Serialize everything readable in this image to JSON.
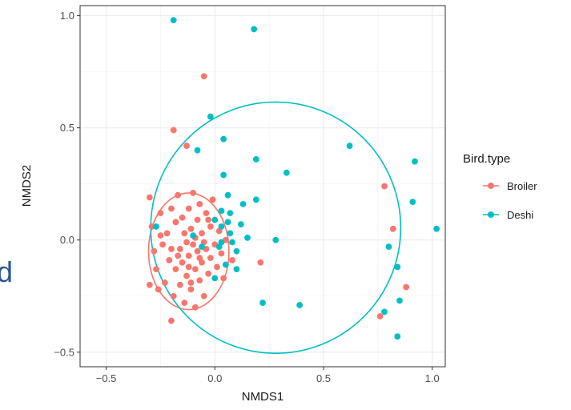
{
  "edge_fragment": "d",
  "chart_data": {
    "type": "scatter",
    "title": "",
    "xlabel": "NMDS1",
    "ylabel": "NMDS2",
    "xlim": [
      -0.62,
      1.06
    ],
    "ylim": [
      -0.565,
      1.045
    ],
    "x_ticks": [
      -0.5,
      0.0,
      0.5,
      1.0
    ],
    "x_tick_labels": [
      "−0.5",
      "0.0",
      "0.5",
      "1.0"
    ],
    "y_ticks": [
      -0.5,
      0.0,
      0.5,
      1.0
    ],
    "y_tick_labels": [
      "−0.5",
      "0.0",
      "0.5",
      "1.0"
    ],
    "grid": true,
    "legend": {
      "title": "Bird.type",
      "position": "right"
    },
    "series": [
      {
        "name": "Broiler",
        "color": "#F8766D",
        "ellipse": {
          "cx": -0.12,
          "cy": -0.05,
          "rx": 0.185,
          "ry": 0.26
        },
        "points": [
          [
            -0.05,
            0.73
          ],
          [
            -0.19,
            0.49
          ],
          [
            -0.13,
            0.42
          ],
          [
            0.78,
            0.24
          ],
          [
            0.82,
            0.05
          ],
          [
            0.88,
            -0.21
          ],
          [
            0.76,
            -0.34
          ],
          [
            -0.2,
            -0.36
          ],
          [
            -0.3,
            0.19
          ],
          [
            -0.29,
            0.06
          ],
          [
            -0.28,
            -0.05
          ],
          [
            -0.3,
            -0.2
          ],
          [
            -0.27,
            -0.13
          ],
          [
            -0.25,
            0.12
          ],
          [
            -0.24,
            -0.02
          ],
          [
            -0.23,
            -0.19
          ],
          [
            -0.22,
            0.03
          ],
          [
            -0.21,
            -0.09
          ],
          [
            -0.2,
            0.14
          ],
          [
            -0.19,
            -0.25
          ],
          [
            -0.18,
            0.08
          ],
          [
            -0.18,
            -0.13
          ],
          [
            -0.17,
            0.2
          ],
          [
            -0.16,
            -0.04
          ],
          [
            -0.16,
            -0.2
          ],
          [
            -0.15,
            0.1
          ],
          [
            -0.15,
            -0.1
          ],
          [
            -0.14,
            0.03
          ],
          [
            -0.14,
            -0.28
          ],
          [
            -0.13,
            -0.16
          ],
          [
            -0.12,
            0.14
          ],
          [
            -0.12,
            -0.07
          ],
          [
            -0.11,
            0.05
          ],
          [
            -0.11,
            -0.22
          ],
          [
            -0.1,
            0.21
          ],
          [
            -0.1,
            -0.02
          ],
          [
            -0.09,
            -0.13
          ],
          [
            -0.09,
            -0.3
          ],
          [
            -0.08,
            0.09
          ],
          [
            -0.08,
            -0.05
          ],
          [
            -0.07,
            0.16
          ],
          [
            -0.07,
            -0.18
          ],
          [
            -0.06,
            0.03
          ],
          [
            -0.06,
            -0.1
          ],
          [
            -0.05,
            -0.25
          ],
          [
            -0.04,
            0.12
          ],
          [
            -0.04,
            -0.04
          ],
          [
            -0.03,
            -0.15
          ],
          [
            -0.02,
            0.06
          ],
          [
            -0.02,
            -0.08
          ],
          [
            -0.01,
            0.18
          ],
          [
            0.0,
            -0.02
          ],
          [
            0.01,
            -0.12
          ],
          [
            0.02,
            0.04
          ],
          [
            0.03,
            -0.06
          ],
          [
            0.04,
            -0.17
          ],
          [
            0.05,
            0.0
          ],
          [
            0.08,
            -0.09
          ],
          [
            -0.26,
            -0.22
          ],
          [
            -0.25,
            0.02
          ],
          [
            -0.2,
            -0.04
          ],
          [
            -0.17,
            -0.07
          ],
          [
            -0.13,
            -0.01
          ],
          [
            -0.12,
            -0.12
          ],
          [
            -0.11,
            -0.19
          ],
          [
            -0.09,
            0.01
          ],
          [
            -0.07,
            -0.08
          ],
          [
            -0.05,
            -0.01
          ],
          [
            -0.03,
            0.09
          ],
          [
            0.21,
            -0.1
          ]
        ]
      },
      {
        "name": "Deshi",
        "color": "#00BFC4",
        "ellipse": {
          "cx": 0.28,
          "cy": 0.055,
          "rx": 0.575,
          "ry": 0.56
        },
        "points": [
          [
            -0.19,
            0.98
          ],
          [
            0.18,
            0.94
          ],
          [
            -0.02,
            0.55
          ],
          [
            0.04,
            0.45
          ],
          [
            -0.08,
            0.4
          ],
          [
            0.19,
            0.36
          ],
          [
            0.33,
            0.3
          ],
          [
            0.62,
            0.42
          ],
          [
            0.92,
            0.35
          ],
          [
            0.91,
            0.17
          ],
          [
            1.02,
            0.05
          ],
          [
            0.8,
            -0.03
          ],
          [
            0.84,
            -0.12
          ],
          [
            0.85,
            -0.27
          ],
          [
            0.78,
            -0.32
          ],
          [
            0.84,
            -0.43
          ],
          [
            0.04,
            0.29
          ],
          [
            0.06,
            0.2
          ],
          [
            0.03,
            0.13
          ],
          [
            0.07,
            0.12
          ],
          [
            0.13,
            0.16
          ],
          [
            0.19,
            0.18
          ],
          [
            0.03,
            0.06
          ],
          [
            0.07,
            0.03
          ],
          [
            0.12,
            0.07
          ],
          [
            0.08,
            -0.01
          ],
          [
            0.1,
            -0.05
          ],
          [
            0.02,
            -0.03
          ],
          [
            0.05,
            -0.11
          ],
          [
            0.0,
            -0.17
          ],
          [
            0.1,
            -0.13
          ],
          [
            0.22,
            -0.28
          ],
          [
            0.39,
            -0.29
          ],
          [
            0.28,
            0.0
          ],
          [
            0.15,
            0.01
          ],
          [
            -0.06,
            -0.03
          ],
          [
            0.03,
            -0.01
          ],
          [
            0.0,
            0.09
          ],
          [
            -0.27,
            0.06
          ],
          [
            -0.1,
            0.02
          ],
          [
            0.06,
            0.08
          ]
        ]
      }
    ]
  }
}
